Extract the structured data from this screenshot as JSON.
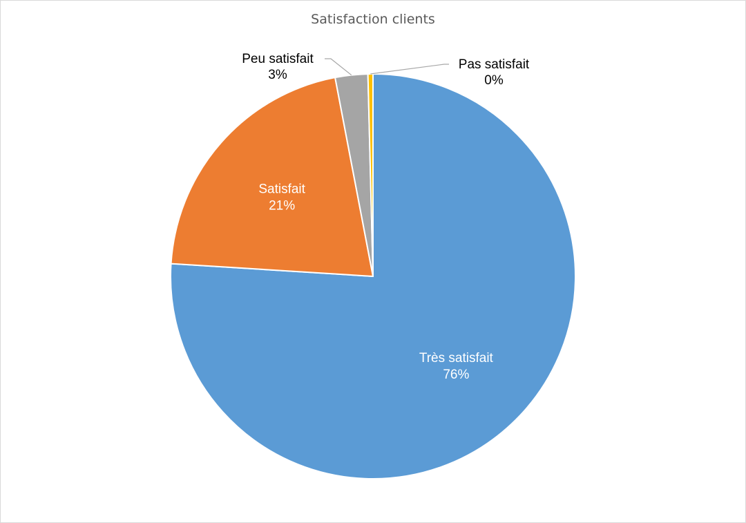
{
  "chart_data": {
    "type": "pie",
    "title": "Satisfaction clients",
    "start_angle_deg": 0,
    "direction": "clockwise",
    "slices": [
      {
        "name": "Très satisfait",
        "value": 76,
        "percent_label": "76%",
        "color": "#5B9BD5",
        "label_color": "#ffffff",
        "label_position": "inside"
      },
      {
        "name": "Satisfait",
        "value": 21,
        "percent_label": "21%",
        "color": "#ED7D31",
        "label_color": "#ffffff",
        "label_position": "inside"
      },
      {
        "name": "Peu satisfait",
        "value": 2.6,
        "percent_label": "3%",
        "color": "#A5A5A5",
        "label_color": "#000000",
        "label_position": "outside-left"
      },
      {
        "name": "Pas satisfait",
        "value": 0.4,
        "percent_label": "0%",
        "color": "#FFC000",
        "label_color": "#000000",
        "label_position": "outside-right"
      }
    ],
    "legend": "none",
    "leader_line_color": "#a6a6a6"
  }
}
